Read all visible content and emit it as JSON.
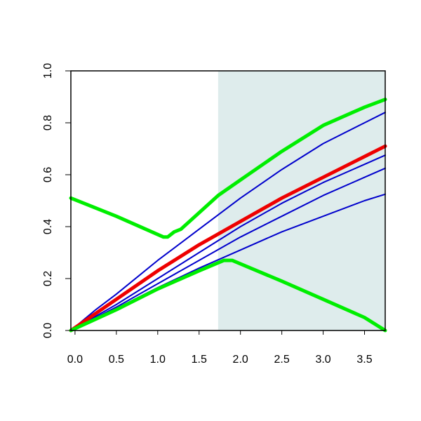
{
  "chart_data": {
    "type": "line",
    "title": "",
    "xlabel": "",
    "ylabel": "",
    "xlim": [
      -0.05,
      3.75
    ],
    "ylim": [
      0.0,
      1.0
    ],
    "grid": false,
    "xticks": [
      {
        "value": 0.0,
        "label": "0.0"
      },
      {
        "value": 0.5,
        "label": "0.5"
      },
      {
        "value": 1.0,
        "label": "1.0"
      },
      {
        "value": 1.5,
        "label": "1.5"
      },
      {
        "value": 2.0,
        "label": "2.0"
      },
      {
        "value": 2.5,
        "label": "2.5"
      },
      {
        "value": 3.0,
        "label": "3.0"
      },
      {
        "value": 3.5,
        "label": "3.5"
      }
    ],
    "yticks": [
      {
        "value": 0.0,
        "label": "0.0"
      },
      {
        "value": 0.2,
        "label": "0.2"
      },
      {
        "value": 0.4,
        "label": "0.4"
      },
      {
        "value": 0.6,
        "label": "0.6"
      },
      {
        "value": 0.8,
        "label": "0.8"
      },
      {
        "value": 1.0,
        "label": "1.0"
      }
    ],
    "shaded_region": {
      "x_start": 1.73,
      "x_end": 3.75,
      "y_start": 0.0,
      "y_end": 1.0,
      "color": "#deecec"
    },
    "colors": {
      "blue": "#0000cc",
      "red": "#ee0000",
      "green": "#00ee00",
      "axis": "#000000"
    },
    "series": [
      {
        "color": "#0000cc",
        "style": "thin",
        "points": [
          [
            -0.05,
            0.0
          ],
          [
            0.25,
            0.08
          ],
          [
            0.5,
            0.14
          ],
          [
            1.0,
            0.27
          ],
          [
            1.5,
            0.39
          ],
          [
            2.0,
            0.51
          ],
          [
            2.5,
            0.62
          ],
          [
            3.0,
            0.72
          ],
          [
            3.5,
            0.8
          ],
          [
            3.75,
            0.84
          ]
        ]
      },
      {
        "color": "#0000cc",
        "style": "thin",
        "points": [
          [
            -0.05,
            0.0
          ],
          [
            0.5,
            0.1
          ],
          [
            1.0,
            0.2
          ],
          [
            1.5,
            0.3
          ],
          [
            2.0,
            0.4
          ],
          [
            2.5,
            0.49
          ],
          [
            3.0,
            0.57
          ],
          [
            3.5,
            0.64
          ],
          [
            3.75,
            0.675
          ]
        ]
      },
      {
        "color": "#0000cc",
        "style": "thin",
        "points": [
          [
            -0.05,
            0.0
          ],
          [
            0.5,
            0.09
          ],
          [
            1.0,
            0.18
          ],
          [
            1.5,
            0.27
          ],
          [
            2.0,
            0.36
          ],
          [
            2.5,
            0.44
          ],
          [
            3.0,
            0.52
          ],
          [
            3.5,
            0.59
          ],
          [
            3.75,
            0.625
          ]
        ]
      },
      {
        "color": "#0000cc",
        "style": "thin",
        "points": [
          [
            -0.05,
            0.0
          ],
          [
            0.5,
            0.085
          ],
          [
            1.0,
            0.165
          ],
          [
            1.5,
            0.24
          ],
          [
            2.0,
            0.31
          ],
          [
            2.5,
            0.38
          ],
          [
            3.0,
            0.44
          ],
          [
            3.5,
            0.5
          ],
          [
            3.75,
            0.525
          ]
        ]
      },
      {
        "color": "#ee0000",
        "style": "thick",
        "points": [
          [
            -0.05,
            0.0
          ],
          [
            0.5,
            0.12
          ],
          [
            1.0,
            0.23
          ],
          [
            1.5,
            0.33
          ],
          [
            2.0,
            0.42
          ],
          [
            2.5,
            0.51
          ],
          [
            3.0,
            0.59
          ],
          [
            3.5,
            0.67
          ],
          [
            3.75,
            0.71
          ]
        ]
      },
      {
        "color": "#00ee00",
        "style": "thick",
        "points": [
          [
            -0.05,
            0.51
          ],
          [
            0.5,
            0.44
          ],
          [
            1.07,
            0.36
          ],
          [
            1.12,
            0.36
          ],
          [
            1.2,
            0.38
          ],
          [
            1.28,
            0.39
          ],
          [
            1.73,
            0.52
          ],
          [
            2.0,
            0.58
          ],
          [
            2.5,
            0.69
          ],
          [
            3.0,
            0.79
          ],
          [
            3.5,
            0.86
          ],
          [
            3.75,
            0.89
          ]
        ]
      },
      {
        "color": "#00ee00",
        "style": "thick",
        "points": [
          [
            -0.05,
            0.0
          ],
          [
            0.5,
            0.08
          ],
          [
            1.0,
            0.16
          ],
          [
            1.5,
            0.23
          ],
          [
            1.8,
            0.27
          ],
          [
            1.9,
            0.27
          ],
          [
            2.5,
            0.19
          ],
          [
            3.0,
            0.12
          ],
          [
            3.5,
            0.05
          ],
          [
            3.75,
            0.0
          ]
        ]
      }
    ]
  }
}
